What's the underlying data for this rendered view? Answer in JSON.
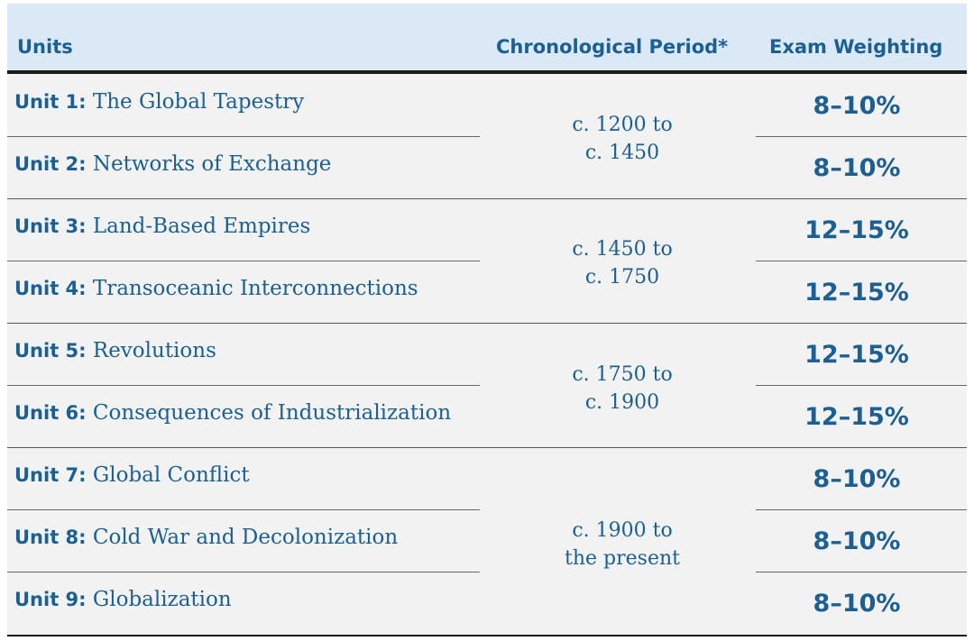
{
  "header": {
    "units": "Units",
    "period": "Chronological Period*",
    "weighting": "Exam Weighting"
  },
  "units": [
    {
      "num": "Unit 1:",
      "title": "The Global Tapestry",
      "weight": "8–10%"
    },
    {
      "num": "Unit 2:",
      "title": "Networks of Exchange",
      "weight": "8–10%"
    },
    {
      "num": "Unit 3:",
      "title": "Land-Based Empires",
      "weight": "12–15%"
    },
    {
      "num": "Unit 4:",
      "title": "Transoceanic Interconnections",
      "weight": "12–15%"
    },
    {
      "num": "Unit 5:",
      "title": "Revolutions",
      "weight": "12–15%"
    },
    {
      "num": "Unit 6:",
      "title": "Consequences of Industrialization",
      "weight": "12–15%"
    },
    {
      "num": "Unit 7:",
      "title": "Global Conflict",
      "weight": "8–10%"
    },
    {
      "num": "Unit 8:",
      "title": "Cold War and Decolonization",
      "weight": "8–10%"
    },
    {
      "num": "Unit 9:",
      "title": "Globalization",
      "weight": "8–10%"
    }
  ],
  "periods": [
    {
      "line1": "c. 1200 to",
      "line2": "c. 1450"
    },
    {
      "line1": "c. 1450 to",
      "line2": "c. 1750"
    },
    {
      "line1": "c. 1750 to",
      "line2": "c. 1900"
    },
    {
      "line1": "c. 1900 to",
      "line2": "the present"
    }
  ]
}
